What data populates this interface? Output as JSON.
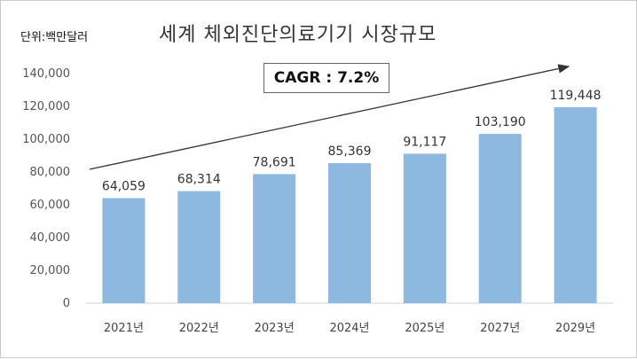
{
  "chart_data": {
    "type": "bar",
    "title": "세계 체외진단의료기기 시장규모",
    "unit_label": "단위:백만달러",
    "categories": [
      "2021년",
      "2022년",
      "2023년",
      "2024년",
      "2025년",
      "2027년",
      "2029년"
    ],
    "values": [
      64059,
      68314,
      78691,
      85369,
      91117,
      103190,
      119448
    ],
    "value_labels": [
      "64,059",
      "68,314",
      "78,691",
      "85,369",
      "91,117",
      "103,190",
      "119,448"
    ],
    "y_ticks": [
      "0",
      "20,000",
      "40,000",
      "60,000",
      "80,000",
      "100,000",
      "120,000",
      "140,000"
    ],
    "ylim": [
      0,
      140000
    ],
    "bar_color": "#8db8e0",
    "annotation": "CAGR : 7.2%",
    "grid": false,
    "legend": "none"
  }
}
